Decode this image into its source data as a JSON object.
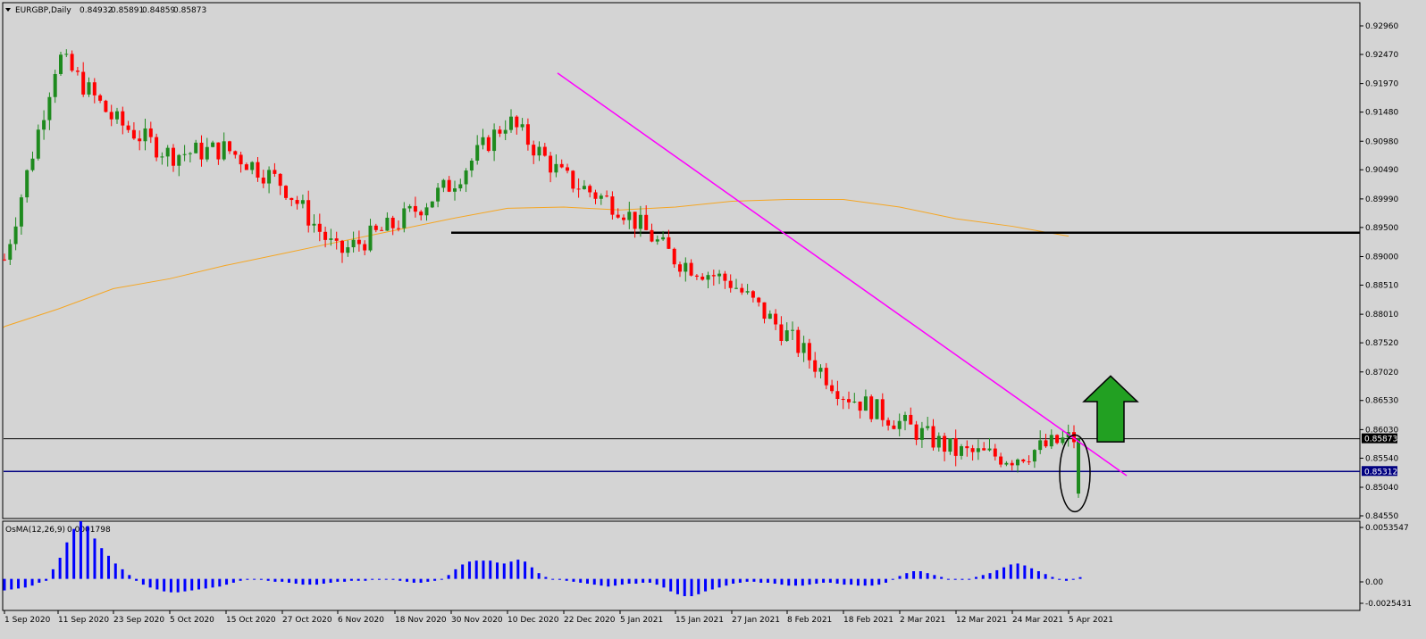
{
  "header": {
    "symbol": "EURGBP,Daily",
    "open": "0.84932",
    "high": "0.85891",
    "low": "0.84859",
    "close": "0.85873"
  },
  "indicator": {
    "name": "OsMA(12,26,9)",
    "value": "0.0001798",
    "y_ticks": [
      "0.0053547",
      "0.00",
      "-0.0025431"
    ]
  },
  "price_axis": {
    "ticks": [
      "0.92960",
      "0.92470",
      "0.91970",
      "0.91480",
      "0.90980",
      "0.90490",
      "0.89990",
      "0.89500",
      "0.89000",
      "0.88510",
      "0.88010",
      "0.87520",
      "0.87020",
      "0.86530",
      "0.86030",
      "0.85540",
      "0.85040",
      "0.84550"
    ],
    "current_price_label": "0.85873",
    "support_label": "0.85312"
  },
  "time_axis": {
    "labels": [
      "1 Sep 2020",
      "11 Sep 2020",
      "23 Sep 2020",
      "5 Oct 2020",
      "15 Oct 2020",
      "27 Oct 2020",
      "6 Nov 2020",
      "18 Nov 2020",
      "30 Nov 2020",
      "10 Dec 2020",
      "22 Dec 2020",
      "5 Jan 2021",
      "15 Jan 2021",
      "27 Jan 2021",
      "8 Feb 2021",
      "18 Feb 2021",
      "2 Mar 2021",
      "12 Mar 2021",
      "24 Mar 2021",
      "5 Apr 2021"
    ]
  },
  "colors": {
    "background": "#d4d4d4",
    "bull": "#1e8a1e",
    "bear": "#ff0000",
    "trendline": "#ff00ff",
    "moving_average": "#f5a623",
    "support_line": "#000080",
    "resistance_line": "#000000",
    "osma": "#0000ff",
    "arrow": "#22a022"
  },
  "chart_data": {
    "type": "candlestick",
    "symbol": "EURGBP",
    "timeframe": "Daily",
    "ylim": [
      0.8455,
      0.9296
    ],
    "horizontal_levels": [
      {
        "price": 0.8941,
        "style": "thick-black"
      },
      {
        "price": 0.85873,
        "style": "thin-black"
      },
      {
        "price": 0.85312,
        "style": "navy"
      }
    ],
    "trendline": {
      "from": {
        "date": "21 Dec 2020",
        "price": 0.9215
      },
      "to": {
        "date": "12 Apr 2021",
        "price": 0.8524
      }
    },
    "moving_average": {
      "points": [
        {
          "date": "1 Sep 2020",
          "price": 0.878
        },
        {
          "date": "11 Sep 2020",
          "price": 0.881
        },
        {
          "date": "23 Sep 2020",
          "price": 0.8845
        },
        {
          "date": "5 Oct 2020",
          "price": 0.8862
        },
        {
          "date": "15 Oct 2020",
          "price": 0.8885
        },
        {
          "date": "27 Oct 2020",
          "price": 0.8905
        },
        {
          "date": "6 Nov 2020",
          "price": 0.8925
        },
        {
          "date": "18 Nov 2020",
          "price": 0.8945
        },
        {
          "date": "30 Nov 2020",
          "price": 0.8965
        },
        {
          "date": "10 Dec 2020",
          "price": 0.8983
        },
        {
          "date": "22 Dec 2020",
          "price": 0.8985
        },
        {
          "date": "5 Jan 2021",
          "price": 0.898
        },
        {
          "date": "15 Jan 2021",
          "price": 0.8985
        },
        {
          "date": "27 Jan 2021",
          "price": 0.8995
        },
        {
          "date": "8 Feb 2021",
          "price": 0.8998
        },
        {
          "date": "18 Feb 2021",
          "price": 0.8998
        },
        {
          "date": "2 Mar 2021",
          "price": 0.8985
        },
        {
          "date": "12 Mar 2021",
          "price": 0.8965
        },
        {
          "date": "24 Mar 2021",
          "price": 0.8952
        },
        {
          "date": "5 Apr 2021",
          "price": 0.8935
        }
      ]
    },
    "key_closes": [
      {
        "date": "1 Sep 2020",
        "close": 0.8895
      },
      {
        "date": "11 Sep 2020",
        "close": 0.9245
      },
      {
        "date": "23 Sep 2020",
        "close": 0.9135
      },
      {
        "date": "5 Oct 2020",
        "close": 0.9075
      },
      {
        "date": "15 Oct 2020",
        "close": 0.9085
      },
      {
        "date": "27 Oct 2020",
        "close": 0.9025
      },
      {
        "date": "6 Nov 2020",
        "close": 0.8905
      },
      {
        "date": "18 Nov 2020",
        "close": 0.8955
      },
      {
        "date": "30 Nov 2020",
        "close": 0.9025
      },
      {
        "date": "10 Dec 2020",
        "close": 0.9135
      },
      {
        "date": "22 Dec 2020",
        "close": 0.9035
      },
      {
        "date": "5 Jan 2021",
        "close": 0.8985
      },
      {
        "date": "15 Jan 2021",
        "close": 0.8895
      },
      {
        "date": "27 Jan 2021",
        "close": 0.8855
      },
      {
        "date": "8 Feb 2021",
        "close": 0.8765
      },
      {
        "date": "18 Feb 2021",
        "close": 0.8665
      },
      {
        "date": "2 Mar 2021",
        "close": 0.8615
      },
      {
        "date": "12 Mar 2021",
        "close": 0.8565
      },
      {
        "date": "24 Mar 2021",
        "close": 0.8555
      },
      {
        "date": "5 Apr 2021",
        "close": 0.85873
      }
    ],
    "osma_series": [
      -0.0012,
      -0.0011,
      -0.001,
      -0.0009,
      -0.0007,
      -0.0004,
      -0.0002,
      0.001,
      0.0022,
      0.0038,
      0.0052,
      0.006,
      0.0055,
      0.0042,
      0.0032,
      0.0024,
      0.0016,
      0.001,
      0.0004,
      -0.0002,
      -0.0006,
      -0.0009,
      -0.0011,
      -0.0013,
      -0.0014,
      -0.0014,
      -0.0013,
      -0.0012,
      -0.0011,
      -0.001,
      -0.0009,
      -0.0008,
      -0.0006,
      -0.0004,
      -0.0002,
      -0.0001,
      0.0,
      -0.0001,
      -0.0002,
      -0.0003,
      -0.0003,
      -0.0004,
      -0.0005,
      -0.0006,
      -0.0006,
      -0.0006,
      -0.0005,
      -0.0004,
      -0.0003,
      -0.0003,
      -0.0002,
      -0.0002,
      -0.0002,
      -0.0001,
      -0.0001,
      0.0,
      -0.0001,
      -0.0002,
      -0.0003,
      -0.0004,
      -0.0004,
      -0.0003,
      -0.0002,
      0.0,
      0.0004,
      0.001,
      0.0015,
      0.0018,
      0.0019,
      0.0019,
      0.0019,
      0.0017,
      0.0016,
      0.0018,
      0.002,
      0.0018,
      0.0012,
      0.0006,
      0.0002,
      0.0,
      -0.0001,
      -0.0002,
      -0.0003,
      -0.0004,
      -0.0005,
      -0.0006,
      -0.0007,
      -0.0008,
      -0.0007,
      -0.0006,
      -0.0005,
      -0.0005,
      -0.0004,
      -0.0004,
      -0.0006,
      -0.0009,
      -0.0013,
      -0.0016,
      -0.0018,
      -0.0018,
      -0.0016,
      -0.0013,
      -0.0011,
      -0.0009,
      -0.0007,
      -0.0005,
      -0.0004,
      -0.0003,
      -0.0003,
      -0.0004,
      -0.0004,
      -0.0005,
      -0.0006,
      -0.0007,
      -0.0007,
      -0.0007,
      -0.0006,
      -0.0005,
      -0.0004,
      -0.0004,
      -0.0005,
      -0.0006,
      -0.0006,
      -0.0007,
      -0.0007,
      -0.0007,
      -0.0006,
      -0.0004,
      -0.0001,
      0.0003,
      0.0006,
      0.0008,
      0.0008,
      0.0006,
      0.0004,
      0.0002,
      0.0,
      -0.0001,
      -0.0001,
      0.0,
      0.0002,
      0.0004,
      0.0006,
      0.0009,
      0.0012,
      0.0015,
      0.0016,
      0.0014,
      0.0011,
      0.0008,
      0.0005,
      0.0002,
      -0.0001,
      -0.0002,
      -0.0001,
      0.00018
    ]
  }
}
